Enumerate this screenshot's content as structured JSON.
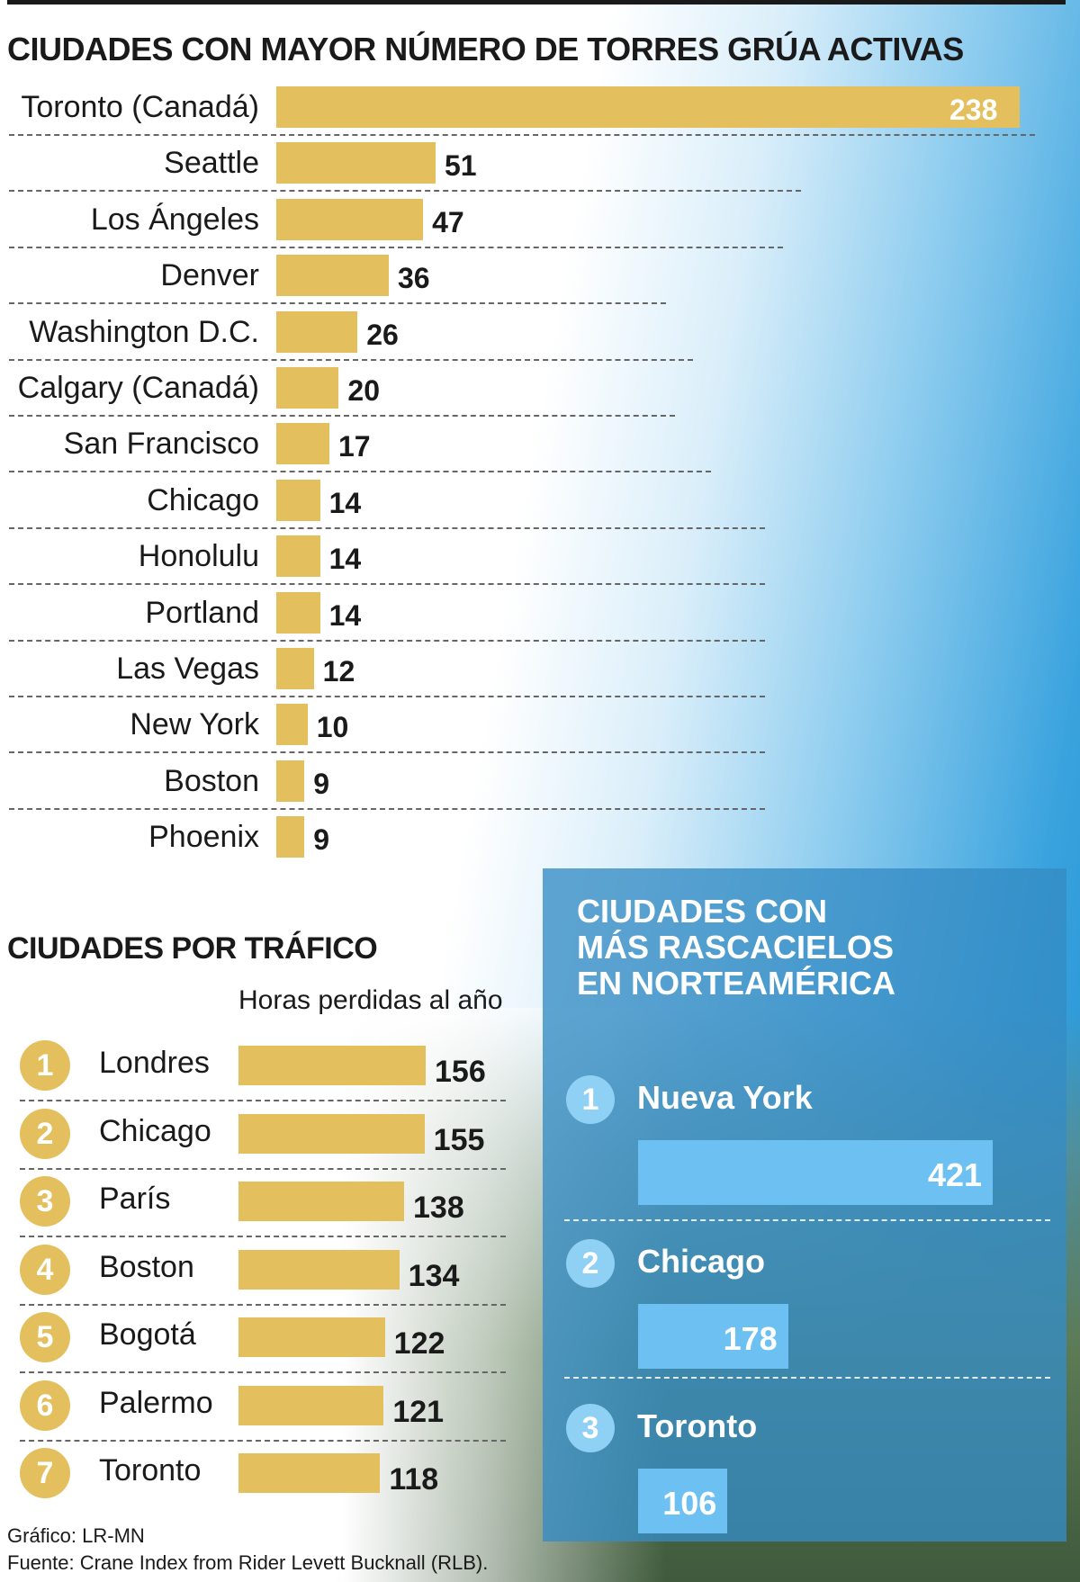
{
  "chart_data": [
    {
      "type": "bar",
      "orientation": "horizontal",
      "title": "CIUDADES CON MAYOR NÚMERO DE TORRES GRÚA ACTIVAS",
      "categories": [
        "Toronto (Canadá)",
        "Seattle",
        "Los Ángeles",
        "Denver",
        "Washington D.C.",
        "Calgary (Canadá)",
        "San Francisco",
        "Chicago",
        "Honolulu",
        "Portland",
        "Las Vegas",
        "New York",
        "Boston",
        "Phoenix"
      ],
      "values": [
        238,
        51,
        47,
        36,
        26,
        20,
        17,
        14,
        14,
        14,
        12,
        10,
        9,
        9
      ],
      "color": "#e4bf5e"
    },
    {
      "type": "bar",
      "orientation": "horizontal",
      "title": "CIUDADES POR TRÁFICO",
      "subtitle": "Horas perdidas al año",
      "ranks": [
        "1",
        "2",
        "3",
        "4",
        "5",
        "6",
        "7"
      ],
      "categories": [
        "Londres",
        "Chicago",
        "París",
        "Boston",
        "Bogotá",
        "Palermo",
        "Toronto"
      ],
      "values": [
        156,
        155,
        138,
        134,
        122,
        121,
        118
      ],
      "color": "#e4bf5e"
    },
    {
      "type": "bar",
      "orientation": "horizontal",
      "title": "CIUDADES CON\nMÁS RASCACIELOS\nEN NORTEAMÉRICA",
      "ranks": [
        "1",
        "2",
        "3"
      ],
      "categories": [
        "Nueva York",
        "Chicago",
        "Toronto"
      ],
      "values": [
        421,
        178,
        106
      ],
      "color": "#6cc0f2"
    }
  ],
  "credits": {
    "grafico": "Gráfico: LR-MN",
    "fuente": "Fuente: Crane Index from Rider Levett Bucknall (RLB)."
  }
}
